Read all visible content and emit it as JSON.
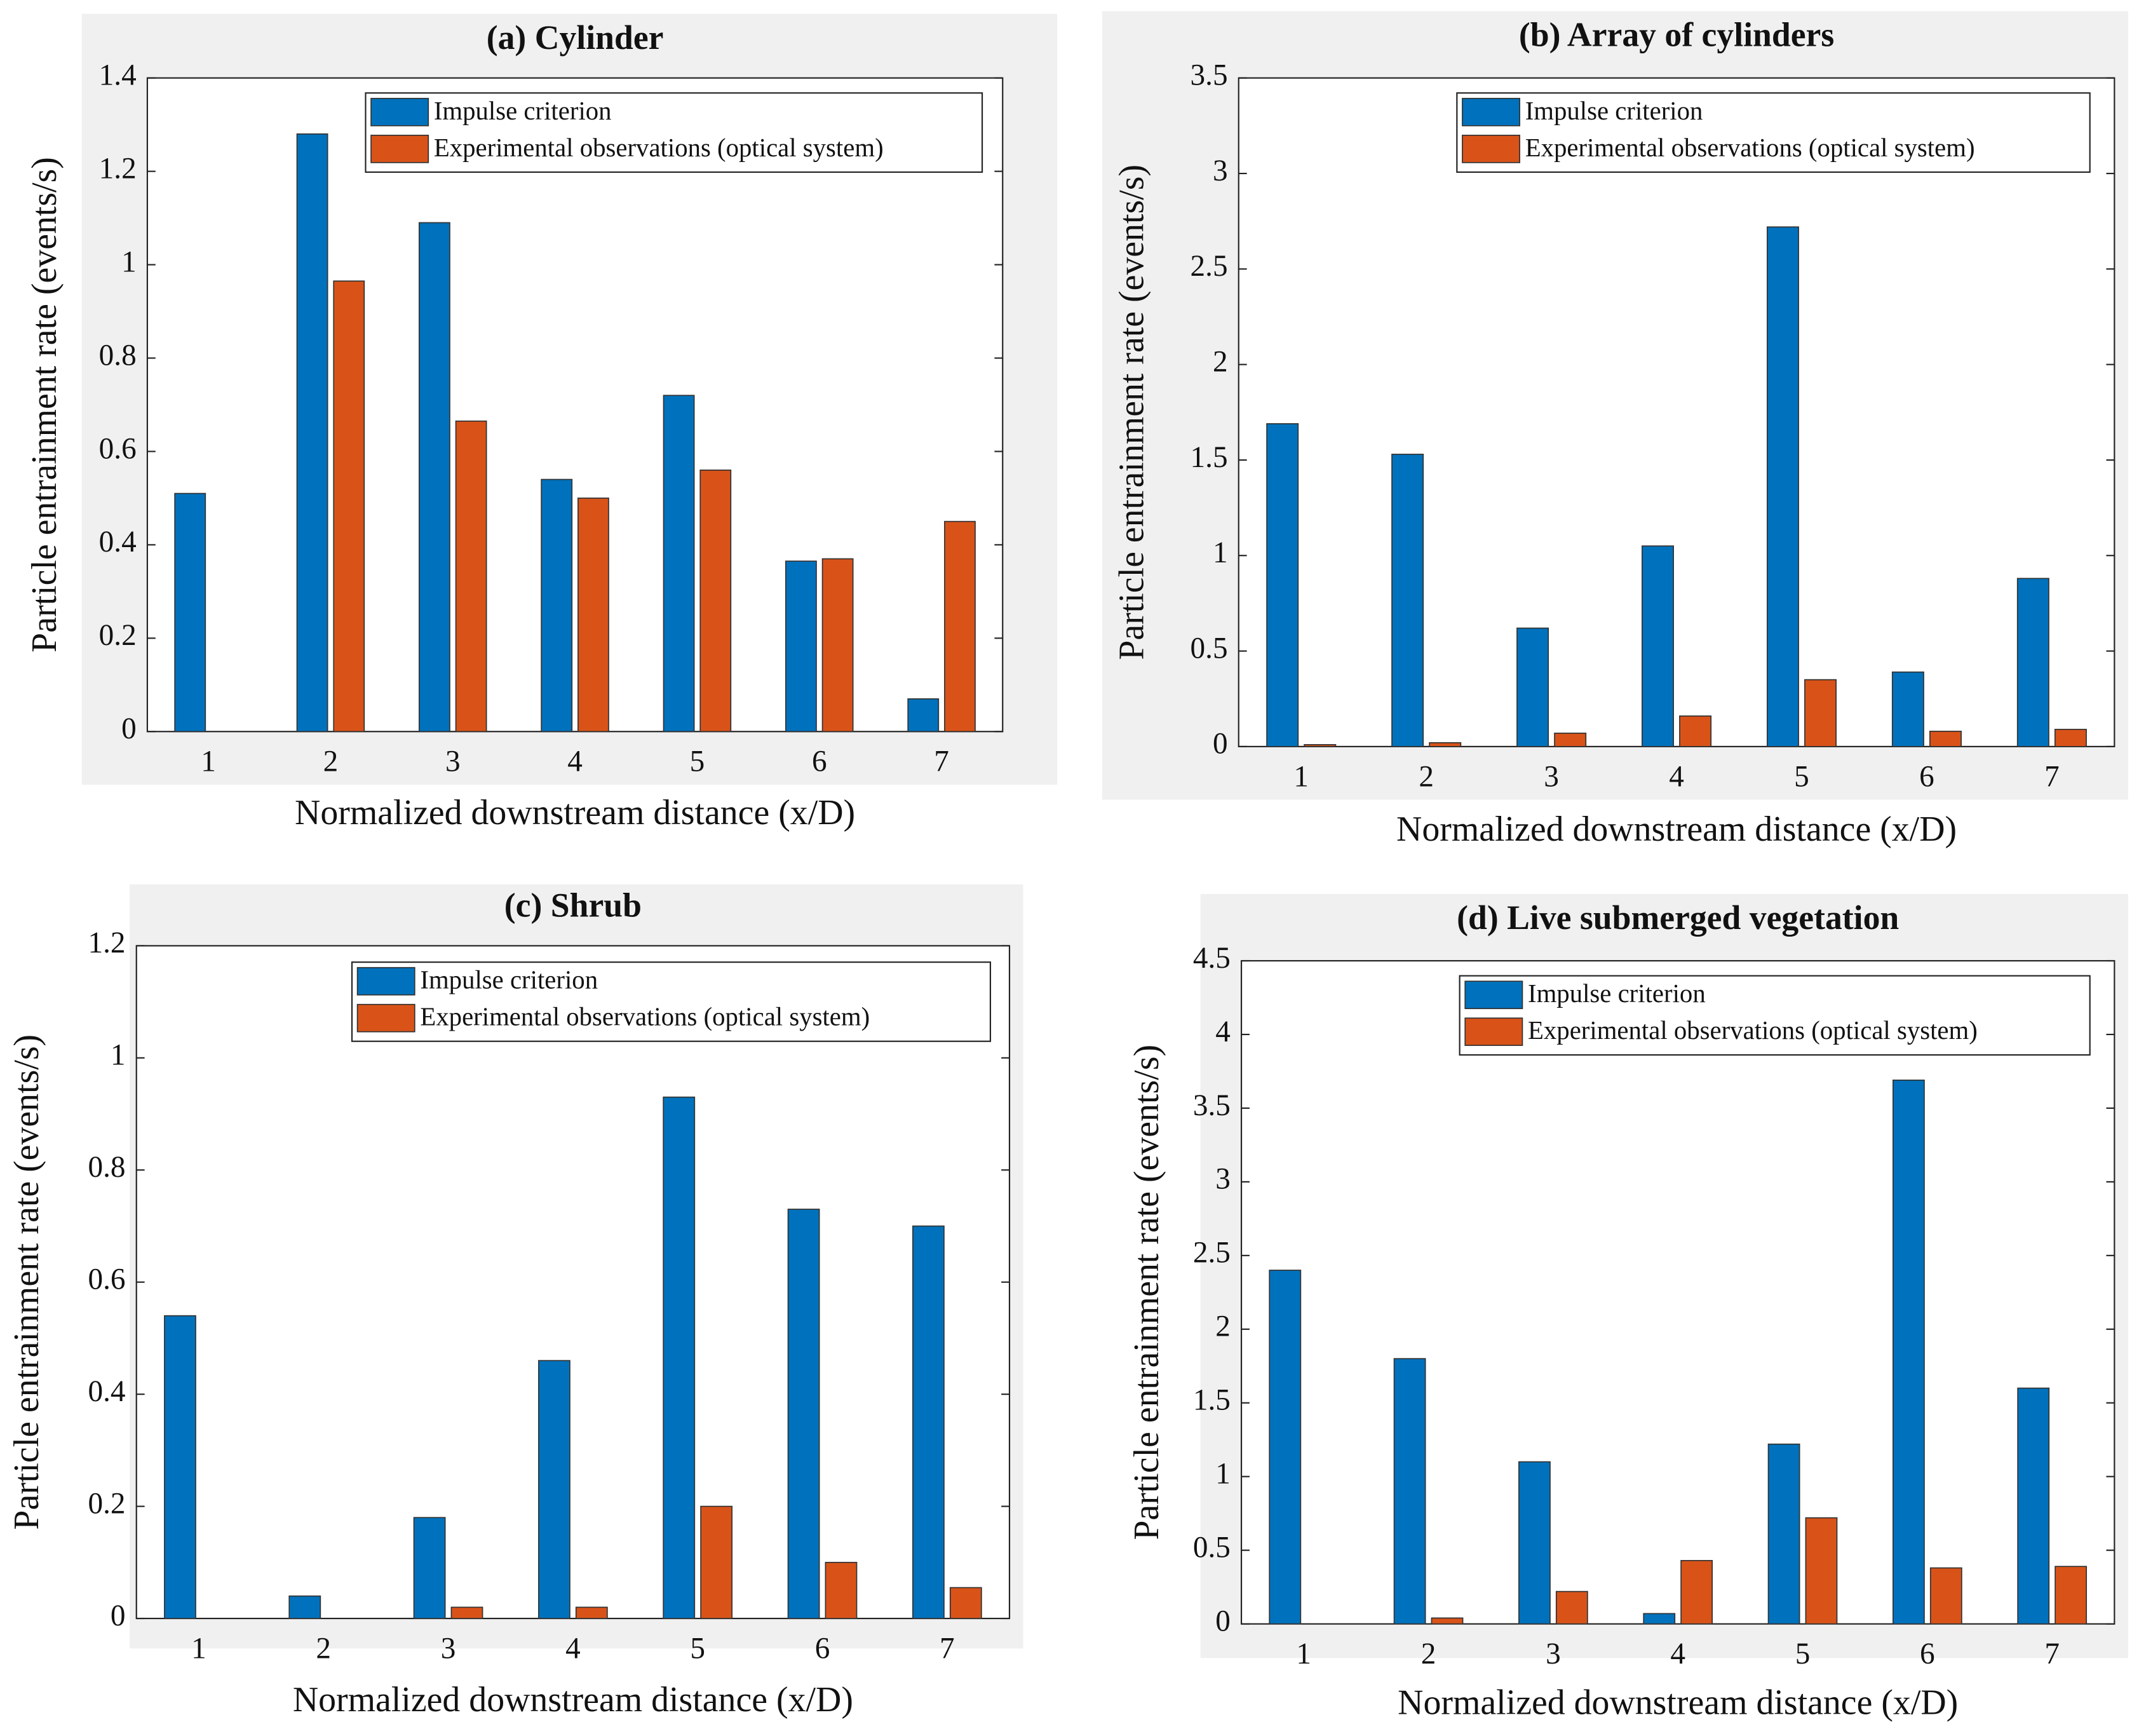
{
  "chart_data": [
    {
      "type": "bar",
      "title": "(a) Cylinder",
      "xlabel": "Normalized downstream distance (x/D)",
      "ylabel": "Particle entrainment rate (events/s)",
      "categories": [
        1,
        2,
        3,
        4,
        5,
        6,
        7
      ],
      "series": [
        {
          "name": "Impulse criterion",
          "color": "#0072BD",
          "values": [
            0.51,
            1.28,
            1.09,
            0.54,
            0.72,
            0.365,
            0.07
          ]
        },
        {
          "name": "Experimental observations (optical system)",
          "color": "#D95319",
          "values": [
            0,
            0.965,
            0.665,
            0.5,
            0.56,
            0.37,
            0.45
          ]
        }
      ],
      "ylim": [
        0,
        1.4
      ],
      "yticks": [
        0,
        0.2,
        0.4,
        0.6,
        0.8,
        1,
        1.2,
        1.4
      ],
      "legend": "north"
    },
    {
      "type": "bar",
      "title": "(b) Array of cylinders",
      "xlabel": "Normalized downstream distance (x/D)",
      "ylabel": "Particle entrainment rate (events/s)",
      "categories": [
        1,
        2,
        3,
        4,
        5,
        6,
        7
      ],
      "series": [
        {
          "name": "Impulse criterion",
          "color": "#0072BD",
          "values": [
            1.69,
            1.53,
            0.62,
            1.05,
            2.72,
            0.39,
            0.88
          ]
        },
        {
          "name": "Experimental observations (optical system)",
          "color": "#D95319",
          "values": [
            0.01,
            0.02,
            0.07,
            0.16,
            0.35,
            0.08,
            0.09
          ]
        }
      ],
      "ylim": [
        0,
        3.5
      ],
      "yticks": [
        0,
        0.5,
        1,
        1.5,
        2,
        2.5,
        3,
        3.5
      ],
      "legend": "north"
    },
    {
      "type": "bar",
      "title": "(c) Shrub",
      "xlabel": "Normalized downstream distance (x/D)",
      "ylabel": "Particle entrainment rate (events/s)",
      "categories": [
        1,
        2,
        3,
        4,
        5,
        6,
        7
      ],
      "series": [
        {
          "name": "Impulse criterion",
          "color": "#0072BD",
          "values": [
            0.54,
            0.04,
            0.18,
            0.46,
            0.93,
            0.73,
            0.7
          ]
        },
        {
          "name": "Experimental observations (optical system)",
          "color": "#D95319",
          "values": [
            0,
            0,
            0.02,
            0.02,
            0.2,
            0.1,
            0.055
          ]
        }
      ],
      "ylim": [
        0,
        1.2
      ],
      "yticks": [
        0,
        0.2,
        0.4,
        0.6,
        0.8,
        1,
        1.2
      ],
      "legend": "north"
    },
    {
      "type": "bar",
      "title": "(d) Live submerged vegetation",
      "xlabel": "Normalized downstream distance (x/D)",
      "ylabel": "Particle entrainment rate (events/s)",
      "categories": [
        1,
        2,
        3,
        4,
        5,
        6,
        7
      ],
      "series": [
        {
          "name": "Impulse criterion",
          "color": "#0072BD",
          "values": [
            2.4,
            1.8,
            1.1,
            0.07,
            1.22,
            3.69,
            1.6
          ]
        },
        {
          "name": "Experimental observations (optical system)",
          "color": "#D95319",
          "values": [
            0,
            0.04,
            0.22,
            0.43,
            0.72,
            0.38,
            0.39
          ]
        }
      ],
      "ylim": [
        0,
        4.5
      ],
      "yticks": [
        0,
        0.5,
        1,
        1.5,
        2,
        2.5,
        3,
        3.5,
        4,
        4.5
      ],
      "legend": "north"
    }
  ]
}
